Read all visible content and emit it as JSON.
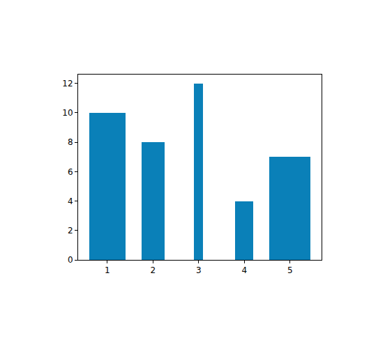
{
  "chart_data": {
    "type": "bar",
    "x": [
      1,
      2,
      3,
      4,
      5
    ],
    "values": [
      10,
      8,
      12,
      4,
      7
    ],
    "widths": [
      0.8,
      0.5,
      0.2,
      0.4,
      0.9
    ],
    "color": "#0a80b8",
    "xlim": [
      0.36,
      5.69
    ],
    "xticks": [
      1,
      2,
      3,
      4,
      5
    ],
    "ylim": [
      0,
      12.6
    ],
    "yticks": [
      0,
      2,
      4,
      6,
      8,
      10,
      12
    ],
    "grid": false
  }
}
